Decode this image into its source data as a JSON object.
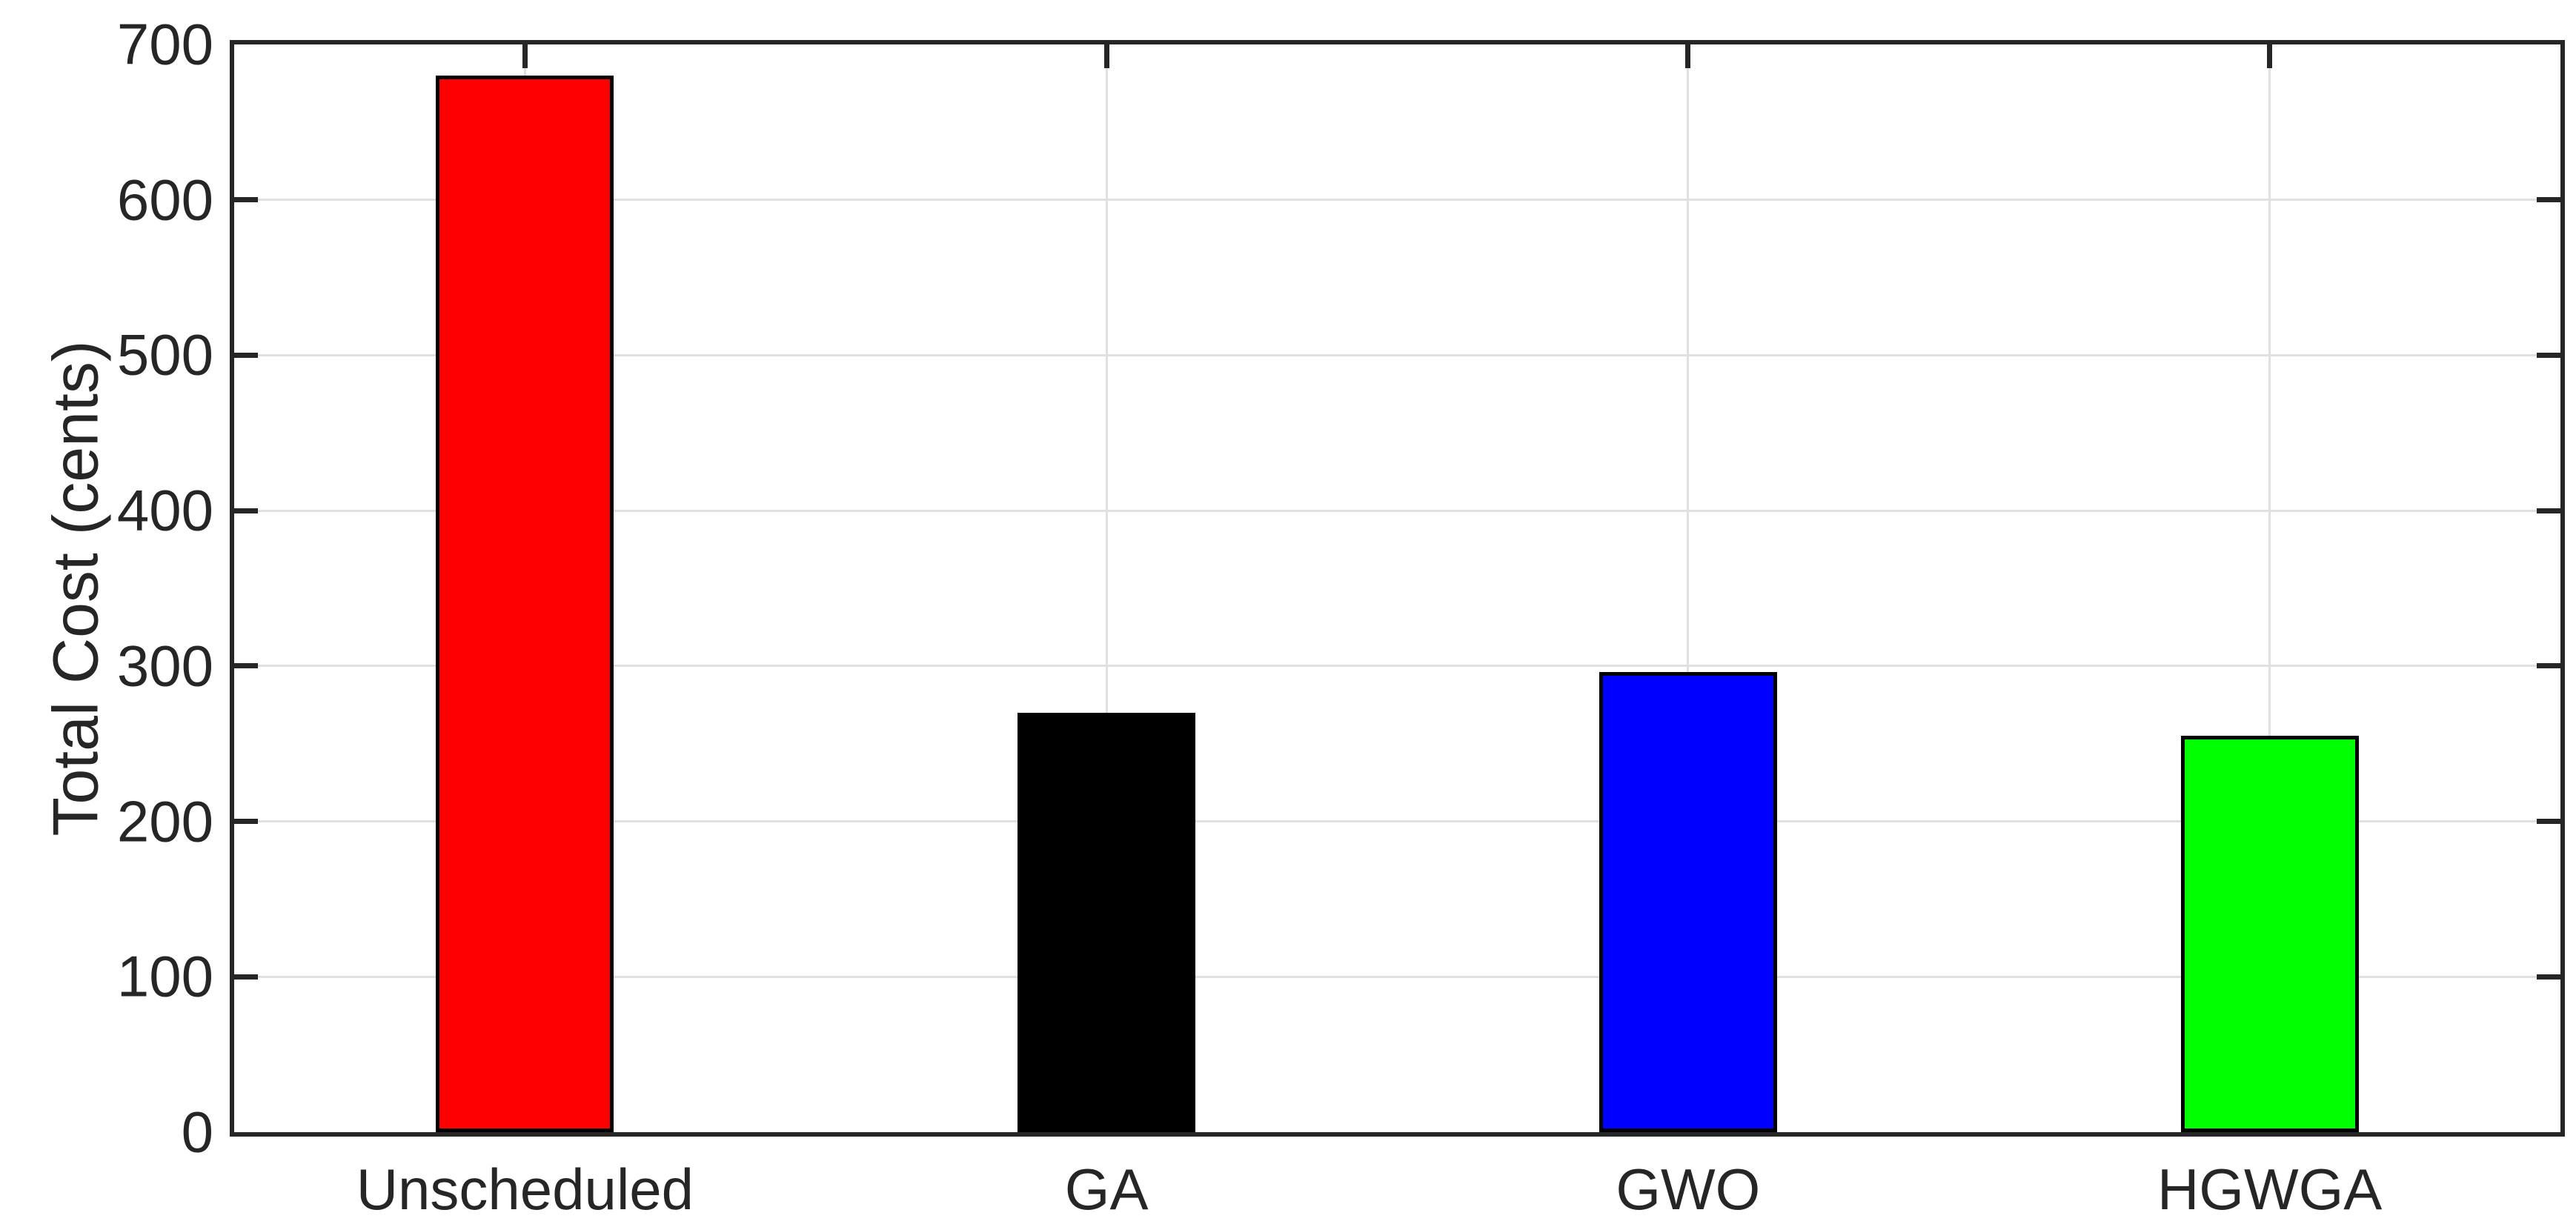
{
  "figure": {
    "background": "#ffffff",
    "axis_color": "#262626",
    "grid_color": "#e0e0e0",
    "tick_label_color": "#262626"
  },
  "chart_data": {
    "type": "bar",
    "title": "",
    "xlabel": "",
    "ylabel": "Total Cost (cents)",
    "categories": [
      "Unscheduled",
      "GA",
      "GWO",
      "HGWGA"
    ],
    "values": [
      680,
      270,
      296,
      255
    ],
    "series": [
      {
        "name": "Total Cost",
        "values": [
          680,
          270,
          296,
          255
        ]
      }
    ],
    "bar_colors": [
      "#ff0000",
      "#000000",
      "#0000ff",
      "#00ff00"
    ],
    "bar_edge_color": "#000000",
    "ylim": [
      0,
      700
    ],
    "yticks": [
      0,
      100,
      200,
      300,
      400,
      500,
      600,
      700
    ],
    "ytick_labels": [
      "0",
      "100",
      "200",
      "300",
      "400",
      "500",
      "600",
      "700"
    ],
    "grid": true,
    "grid_lines": "horizontal-and-vertical",
    "legend": null,
    "box": true,
    "tick_direction": "in"
  }
}
